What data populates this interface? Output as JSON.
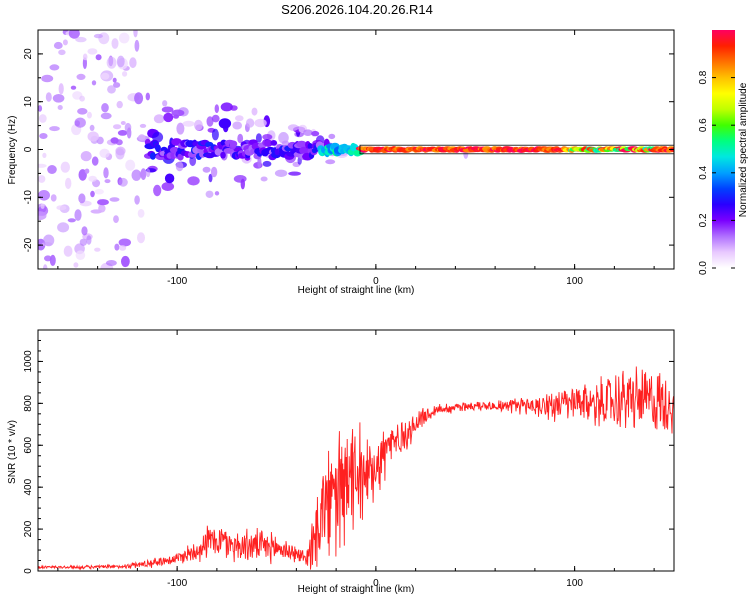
{
  "title": "S206.2026.104.20.26.R14",
  "chart_data": [
    {
      "type": "heatmap",
      "name": "spectrogram",
      "xlabel": "Height of straight line (km)",
      "ylabel": "Frequency (Hz)",
      "xlim": [
        -170,
        150
      ],
      "ylim": [
        -25,
        25
      ],
      "xticks": [
        "-100",
        "0",
        "100"
      ],
      "yticks": [
        "20",
        "10",
        "0",
        "-10",
        "-20"
      ],
      "xtick_values": [
        -100,
        0,
        100
      ],
      "ytick_values": [
        20,
        10,
        0,
        -10,
        -20
      ],
      "colorbar": {
        "label": "Normalized spectral amplitude",
        "range": [
          0,
          1
        ],
        "ticks": [
          "0.0",
          "0.2",
          "0.4",
          "0.6",
          "0.8"
        ],
        "tick_values": [
          0,
          0.2,
          0.4,
          0.6,
          0.8
        ],
        "stops": [
          "#ffffff",
          "#e8c8ff",
          "#b070ff",
          "#7a00ff",
          "#2a00ff",
          "#0040ff",
          "#00a0ff",
          "#00e8e0",
          "#00ff80",
          "#40ff00",
          "#c0ff00",
          "#ffff00",
          "#ffc000",
          "#ff7000",
          "#ff2000",
          "#ff0060"
        ]
      },
      "carrier_segments": [
        {
          "x0": -115,
          "x1": -28,
          "amp": 0.22,
          "spread": 3.2
        },
        {
          "x0": -28,
          "x1": -8,
          "amp": 0.45,
          "spread": 1.6
        },
        {
          "x0": -8,
          "x1": 150,
          "amp": 0.92,
          "spread": 0.5
        }
      ]
    },
    {
      "type": "line",
      "name": "snr",
      "xlabel": "Height of straight line (km)",
      "ylabel": "SNR (10 * v/v)",
      "xlim": [
        -170,
        150
      ],
      "ylim": [
        0,
        1150
      ],
      "xticks": [
        "-100",
        "0",
        "100"
      ],
      "yticks": [
        "0",
        "200",
        "400",
        "600",
        "800",
        "1000"
      ],
      "xtick_values": [
        -100,
        0,
        100
      ],
      "ytick_values": [
        0,
        200,
        400,
        600,
        800,
        1000
      ],
      "color": "#ff2020",
      "series": [
        {
          "name": "SNR",
          "x": [
            -170,
            -150,
            -130,
            -115,
            -100,
            -90,
            -85,
            -80,
            -70,
            -60,
            -50,
            -45,
            -40,
            -35,
            -32,
            -30,
            -25,
            -20,
            -17,
            -15,
            -12,
            -10,
            -5,
            0,
            5,
            10,
            15,
            20,
            25,
            30,
            40,
            50,
            60,
            70,
            80,
            90,
            100,
            110,
            120,
            125,
            130,
            140,
            150
          ],
          "mean": [
            18,
            18,
            20,
            35,
            60,
            100,
            140,
            150,
            120,
            120,
            110,
            100,
            80,
            60,
            120,
            230,
            300,
            350,
            380,
            400,
            420,
            430,
            460,
            520,
            580,
            620,
            650,
            700,
            740,
            770,
            780,
            790,
            790,
            790,
            790,
            790,
            800,
            800,
            810,
            820,
            820,
            810,
            800
          ],
          "noise": [
            8,
            8,
            10,
            20,
            30,
            60,
            80,
            90,
            80,
            80,
            70,
            60,
            40,
            40,
            150,
            220,
            260,
            300,
            320,
            280,
            260,
            250,
            200,
            180,
            150,
            120,
            90,
            60,
            40,
            30,
            25,
            25,
            25,
            40,
            60,
            70,
            90,
            110,
            140,
            160,
            160,
            160,
            150
          ]
        }
      ]
    }
  ]
}
